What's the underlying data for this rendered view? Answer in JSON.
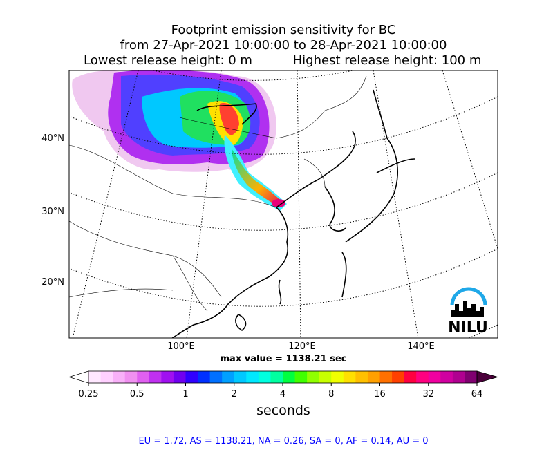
{
  "title": {
    "line1": "Footprint emission sensitivity for BC",
    "line2": "from 27-Apr-2021 10:00:00 to 28-Apr-2021 10:00:00",
    "line3a": "Lowest release height: 0 m",
    "line3b": "Highest release height: 100 m"
  },
  "map": {
    "lat_labels": [
      "40°N",
      "30°N",
      "20°N"
    ],
    "lon_labels": [
      "100°E",
      "120°E",
      "140°E"
    ],
    "max_value": "max value = 1138.21 sec",
    "logo": "NILU"
  },
  "colorbar": {
    "ticks": [
      "0.25",
      "0.5",
      "1",
      "2",
      "4",
      "8",
      "16",
      "32",
      "64"
    ],
    "label": "seconds"
  },
  "footer": "EU = 1.72,  AS = 1138.21,  NA = 0.26,  SA = 0,  AF = 0.14,  AU = 0"
}
